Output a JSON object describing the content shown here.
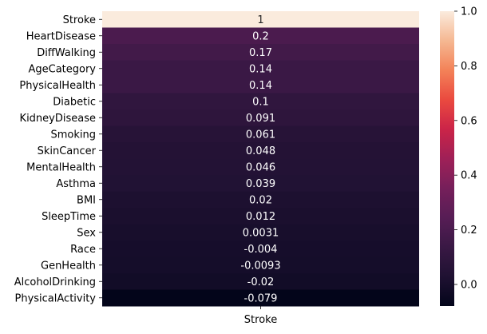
{
  "chart_data": {
    "type": "heatmap",
    "x_categories": [
      "Stroke"
    ],
    "y_categories": [
      "Stroke",
      "HeartDisease",
      "DiffWalking",
      "AgeCategory",
      "PhysicalHealth",
      "Diabetic",
      "KidneyDisease",
      "Smoking",
      "SkinCancer",
      "MentalHealth",
      "Asthma",
      "BMI",
      "SleepTime",
      "Sex",
      "Race",
      "GenHealth",
      "AlcoholDrinking",
      "PhysicalActivity"
    ],
    "values": [
      1,
      0.2,
      0.17,
      0.14,
      0.14,
      0.1,
      0.091,
      0.061,
      0.048,
      0.046,
      0.039,
      0.02,
      0.012,
      0.0031,
      -0.004,
      -0.0093,
      -0.02,
      -0.079
    ],
    "value_labels": [
      "1",
      "0.2",
      "0.17",
      "0.14",
      "0.14",
      "0.1",
      "0.091",
      "0.061",
      "0.048",
      "0.046",
      "0.039",
      "0.02",
      "0.012",
      "0.0031",
      "-0.004",
      "-0.0093",
      "-0.02",
      "-0.079"
    ],
    "colorbar": {
      "colormap": "rocket",
      "range": [
        -0.079,
        1
      ],
      "ticks": [
        0.0,
        0.2,
        0.4,
        0.6,
        0.8,
        1.0
      ],
      "tick_labels": [
        "0.0",
        "0.2",
        "0.4",
        "0.6",
        "0.8",
        "1.0"
      ]
    },
    "title": "",
    "xlabel": "",
    "ylabel": ""
  }
}
